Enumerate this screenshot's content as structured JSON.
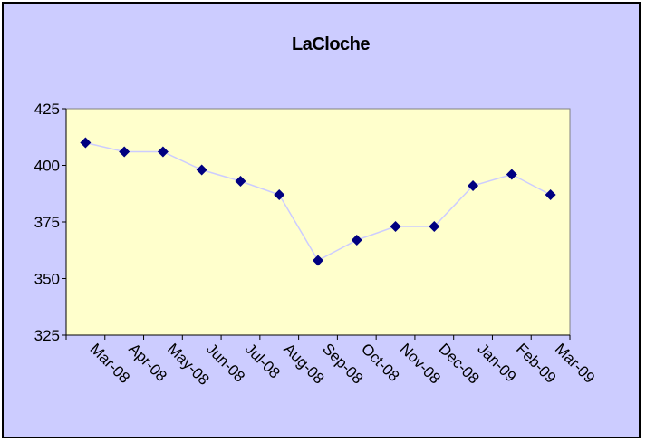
{
  "chart_data": {
    "type": "line",
    "title": "LaCloche",
    "xlabel": "",
    "ylabel": "",
    "categories": [
      "Mar-08",
      "Apr-08",
      "May-08",
      "Jun-08",
      "Jul-08",
      "Aug-08",
      "Sep-08",
      "Oct-08",
      "Nov-08",
      "Dec-08",
      "Jan-09",
      "Feb-09",
      "Mar-09"
    ],
    "series": [
      {
        "values": [
          410,
          406,
          406,
          398,
          393,
          387,
          358,
          367,
          373,
          373,
          391,
          396,
          387
        ]
      }
    ],
    "ylim": [
      325,
      425
    ],
    "yticks": [
      325,
      350,
      375,
      400,
      425
    ],
    "grid": false,
    "legend": "none"
  },
  "colors": {
    "chart_background": "#ccccff",
    "plot_background": "#ffffcc",
    "line": "#ccccff",
    "marker": "#000080",
    "border": "#000000"
  }
}
